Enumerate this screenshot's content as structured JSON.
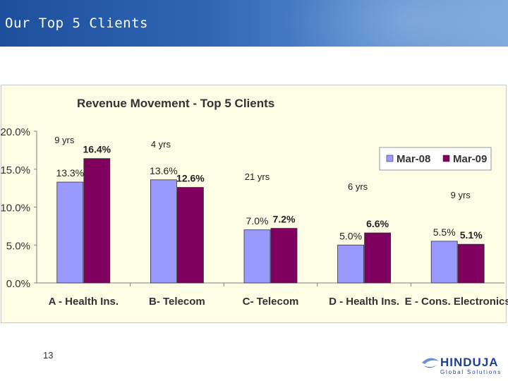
{
  "slide": {
    "title": "Our Top 5 Clients",
    "page_number": "13"
  },
  "logo": {
    "name": "HINDUJA",
    "tagline": "Global Solutions"
  },
  "colors": {
    "mar08": "#9999ff",
    "mar09": "#800060",
    "chart_bg": "#fdfde6",
    "banner": "#2f66b4"
  },
  "chart_data": {
    "type": "bar",
    "title": "Revenue Movement - Top 5 Clients",
    "categories": [
      "A - Health Ins.",
      "B- Telecom",
      "C- Telecom",
      "D - Health Ins.",
      "E - Cons. Electronics"
    ],
    "series": [
      {
        "name": "Mar-08",
        "values": [
          13.3,
          13.6,
          7.0,
          5.0,
          5.5
        ],
        "labels": [
          "13.3%",
          "13.6%",
          "7.0%",
          "5.0%",
          "5.5%"
        ]
      },
      {
        "name": "Mar-09",
        "values": [
          16.4,
          12.6,
          7.2,
          6.6,
          5.1
        ],
        "labels": [
          "16.4%",
          "12.6%",
          "7.2%",
          "6.6%",
          "5.1%"
        ]
      }
    ],
    "tenure_annotations": [
      "9 yrs",
      "4 yrs",
      "21 yrs",
      "6 yrs",
      "9 yrs"
    ],
    "yticks": [
      "0.0%",
      "5.0%",
      "10.0%",
      "15.0%",
      "20.0%"
    ],
    "ylim": [
      0,
      20
    ],
    "legend_position": "top-right",
    "grid": false
  }
}
